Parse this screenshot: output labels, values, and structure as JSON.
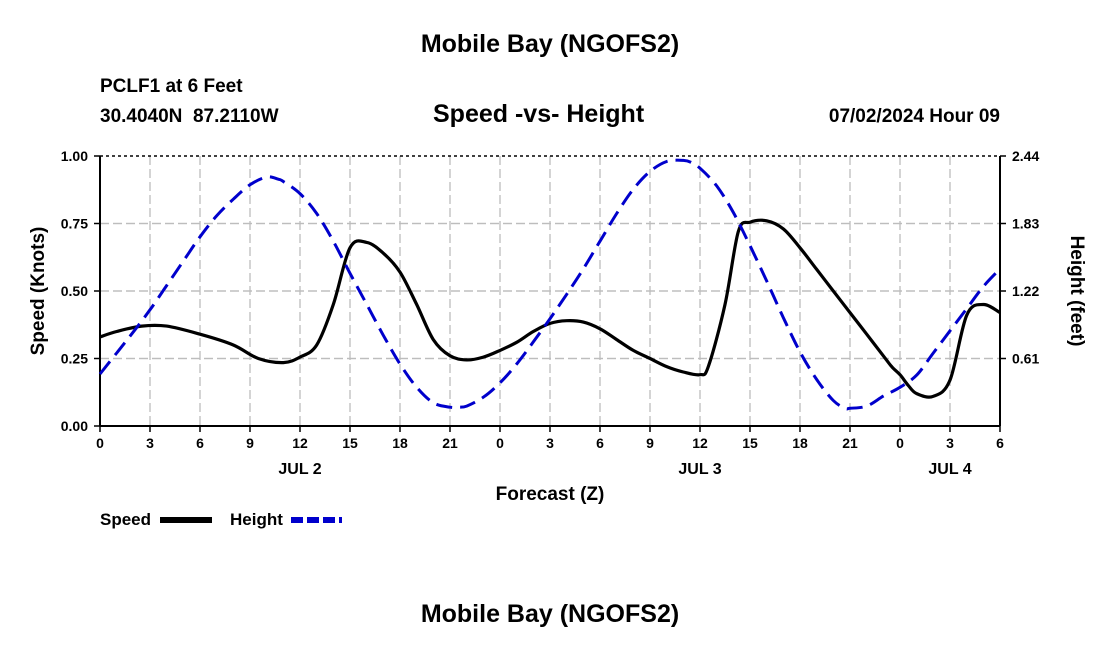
{
  "header": {
    "title": "Mobile Bay (NGOFS2)",
    "station": "PCLF1 at 6 Feet",
    "coords": "30.4040N  87.2110W",
    "subtitle": "Speed -vs- Height",
    "date": "07/02/2024 Hour 09"
  },
  "footer": {
    "title": "Mobile Bay (NGOFS2)"
  },
  "chart_data": {
    "type": "line",
    "title": "Speed -vs- Height",
    "xlabel": "Forecast (Z)",
    "ylabel_left": "Speed (Knots)",
    "ylabel_right": "Height (feet)",
    "xlim": [
      0,
      54
    ],
    "ylim_left": [
      0,
      1.0
    ],
    "ylim_right": [
      0,
      2.44
    ],
    "x_ticks": [
      0,
      3,
      6,
      9,
      12,
      15,
      18,
      21,
      24,
      27,
      30,
      33,
      36,
      39,
      42,
      45,
      48,
      51,
      54
    ],
    "x_tick_labels": [
      "0",
      "3",
      "6",
      "9",
      "12",
      "15",
      "18",
      "21",
      "0",
      "3",
      "6",
      "9",
      "12",
      "15",
      "18",
      "21",
      "0",
      "3",
      "6"
    ],
    "date_labels": [
      {
        "x": 12,
        "label": "JUL 2"
      },
      {
        "x": 36,
        "label": "JUL 3"
      },
      {
        "x": 51,
        "label": "JUL 4"
      }
    ],
    "y_ticks_left": [
      0.0,
      0.25,
      0.5,
      0.75,
      1.0
    ],
    "y_tick_labels_left": [
      "0.00",
      "0.25",
      "0.50",
      "0.75",
      "1.00"
    ],
    "y_ticks_right": [
      0.61,
      1.22,
      1.83,
      2.44
    ],
    "y_tick_labels_right": [
      "0.61",
      "1.22",
      "1.83",
      "2.44"
    ],
    "grid": true,
    "legend": [
      {
        "name": "Speed",
        "color": "#000000",
        "style": "solid"
      },
      {
        "name": "Height",
        "color": "#0000cc",
        "style": "dashed"
      }
    ],
    "series": [
      {
        "name": "Speed",
        "axis": "left",
        "color": "#000000",
        "style": "solid",
        "x": [
          0,
          1,
          2.5,
          4,
          6,
          8,
          9.5,
          11,
          12,
          13,
          14,
          15,
          16,
          17,
          18,
          19,
          20,
          21,
          22,
          23,
          24,
          25,
          26,
          27,
          28,
          29,
          30,
          31,
          32,
          33,
          34,
          35,
          36,
          36.5,
          37.5,
          38.3,
          39,
          40,
          41,
          42,
          43,
          44,
          45,
          46,
          47,
          47.5,
          48,
          48.5,
          49,
          50,
          51,
          52,
          53,
          54
        ],
        "values": [
          0.33,
          0.35,
          0.37,
          0.37,
          0.34,
          0.3,
          0.25,
          0.235,
          0.255,
          0.3,
          0.45,
          0.66,
          0.68,
          0.64,
          0.57,
          0.45,
          0.32,
          0.26,
          0.245,
          0.255,
          0.28,
          0.31,
          0.35,
          0.38,
          0.39,
          0.385,
          0.36,
          0.32,
          0.28,
          0.25,
          0.22,
          0.2,
          0.19,
          0.22,
          0.45,
          0.72,
          0.755,
          0.76,
          0.73,
          0.66,
          0.58,
          0.5,
          0.42,
          0.34,
          0.26,
          0.22,
          0.19,
          0.15,
          0.12,
          0.11,
          0.17,
          0.41,
          0.45,
          0.42
        ]
      },
      {
        "name": "Height",
        "axis": "right",
        "color": "#0000cc",
        "style": "dashed",
        "x": [
          0,
          1,
          2,
          3,
          4,
          5,
          6,
          7,
          8,
          9,
          10,
          10.7,
          11,
          12,
          13,
          14,
          15,
          16,
          17,
          18,
          19,
          20,
          21,
          21.5,
          22,
          23,
          24,
          25,
          26,
          27,
          28,
          29,
          30,
          31,
          32,
          33,
          34,
          35,
          35.5,
          36,
          37,
          38,
          39,
          40,
          41,
          42,
          43,
          44,
          44.7,
          45,
          46,
          47,
          48,
          49,
          50,
          51,
          52,
          53,
          54
        ],
        "values": [
          0.47,
          0.66,
          0.85,
          1.05,
          1.27,
          1.49,
          1.71,
          1.9,
          2.05,
          2.18,
          2.25,
          2.23,
          2.21,
          2.1,
          1.92,
          1.67,
          1.38,
          1.1,
          0.82,
          0.56,
          0.35,
          0.21,
          0.17,
          0.17,
          0.18,
          0.26,
          0.39,
          0.56,
          0.76,
          0.97,
          1.19,
          1.42,
          1.67,
          1.92,
          2.14,
          2.3,
          2.39,
          2.4,
          2.38,
          2.33,
          2.17,
          1.93,
          1.63,
          1.31,
          0.98,
          0.67,
          0.42,
          0.23,
          0.16,
          0.16,
          0.18,
          0.27,
          0.35,
          0.46,
          0.66,
          0.86,
          1.06,
          1.26,
          1.42
        ]
      }
    ]
  }
}
